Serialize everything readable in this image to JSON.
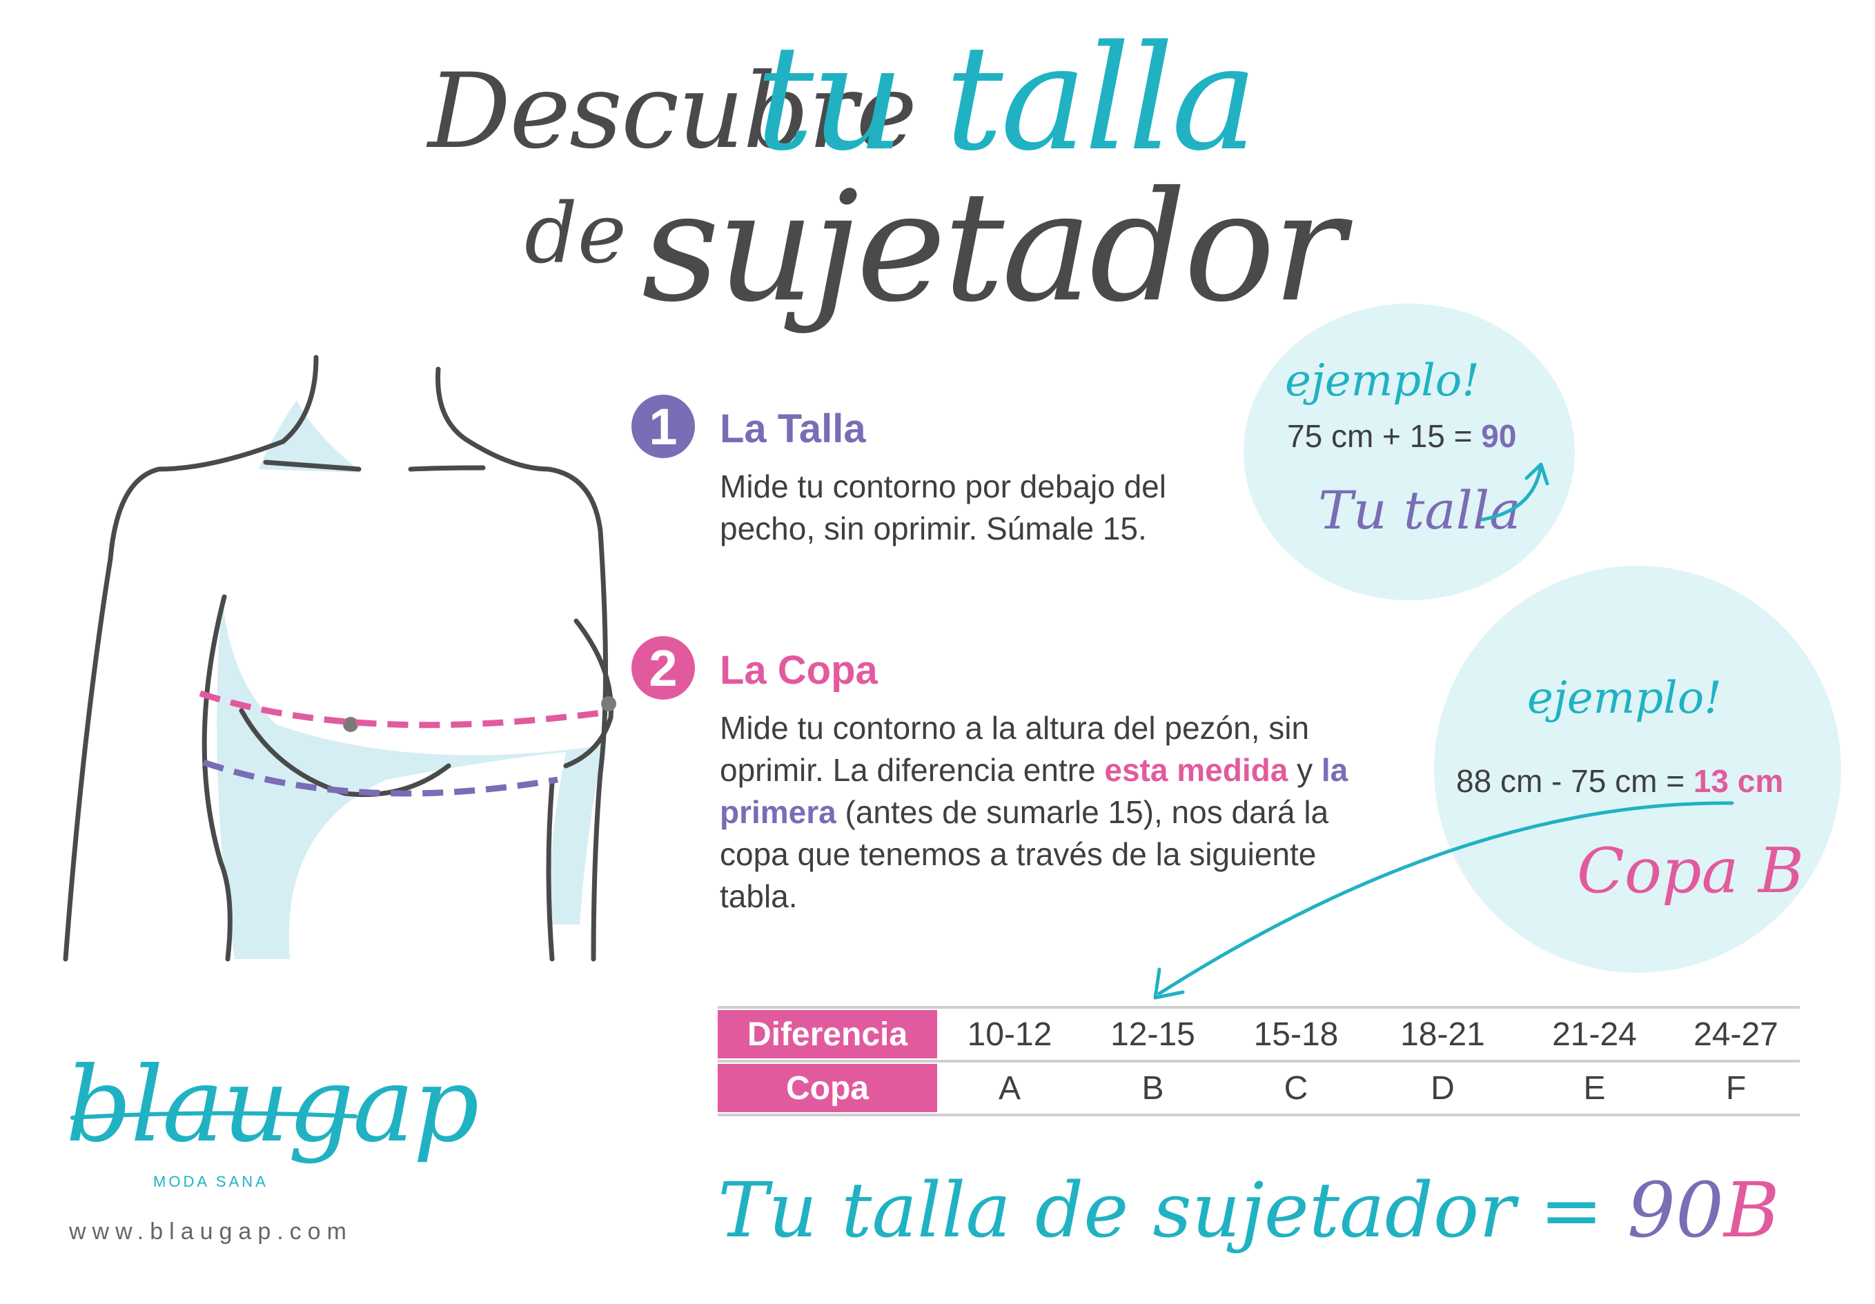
{
  "title": {
    "word1": "Descubre",
    "word2": "tu talla",
    "word3": "de",
    "word4": "sujetador"
  },
  "step1": {
    "number": "1",
    "heading": "La Talla",
    "text": "Mide tu contorno por debajo del pecho, sin oprimir. Súmale 15."
  },
  "step2": {
    "number": "2",
    "heading": "La Copa",
    "text_a": "Mide tu contorno a la altura del pezón, sin oprimir. La diferencia entre ",
    "highlight_a": "esta medida",
    "text_b": " y ",
    "highlight_b": "la primera",
    "text_c": " (antes de sumarle 15), nos dará la copa que tenemos a través de la siguiente tabla."
  },
  "example1": {
    "label": "ejemplo!",
    "calc_prefix": "75 cm + 15 = ",
    "calc_result": "90",
    "result_label": "Tu talla"
  },
  "example2": {
    "label": "ejemplo!",
    "calc_prefix": "88 cm - 75 cm = ",
    "calc_result": "13 cm",
    "result_label": "Copa B"
  },
  "table": {
    "row1_header": "Diferencia",
    "row2_header": "Copa",
    "differences": [
      "10-12",
      "12-15",
      "15-18",
      "18-21",
      "21-24",
      "24-27"
    ],
    "cups": [
      "A",
      "B",
      "C",
      "D",
      "E",
      "F"
    ]
  },
  "bottom": {
    "prefix": "Tu talla  de sujetador = ",
    "num": "90",
    "cup": "B"
  },
  "brand": {
    "logo": "blaugap",
    "tagline": "MODA SANA",
    "website": "www.blaugap.com"
  },
  "colors": {
    "teal": "#20b2c2",
    "purple": "#7a6cb5",
    "pink": "#e25a9e",
    "light_blue": "#dff4f6",
    "dark_gray": "#4a4a4a"
  }
}
